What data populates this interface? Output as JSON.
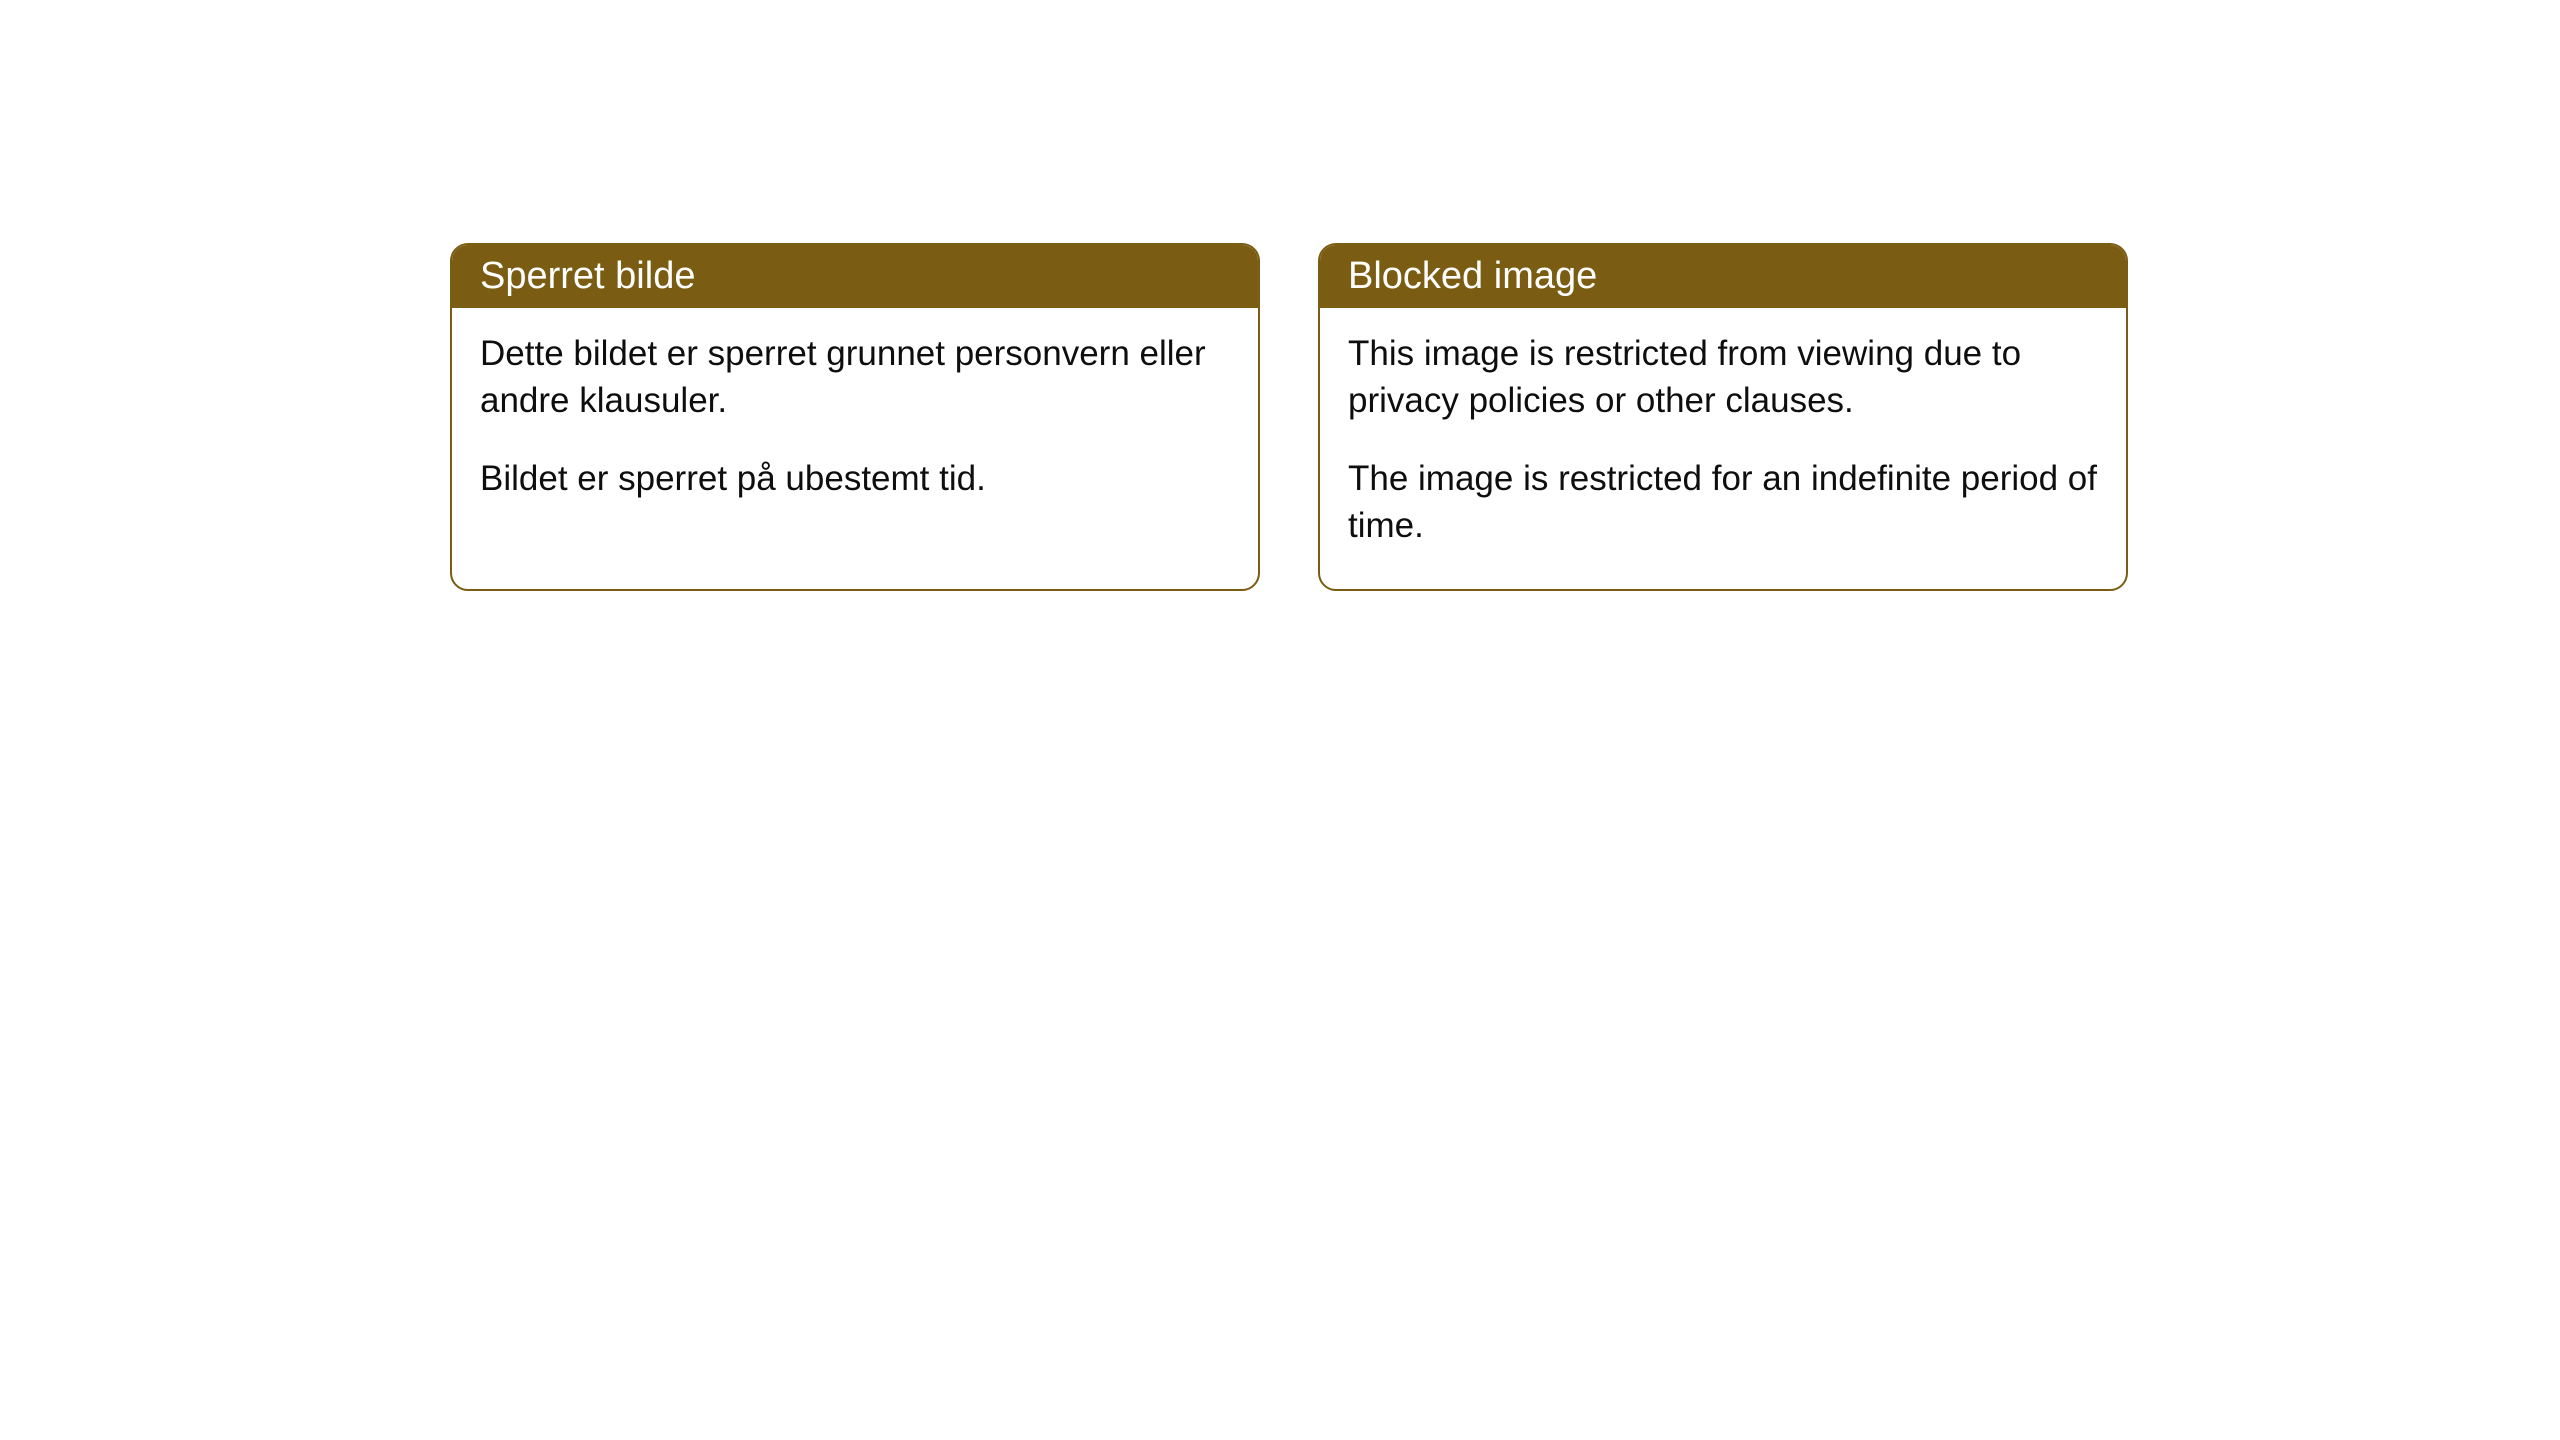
{
  "cards": [
    {
      "title": "Sperret bilde",
      "paragraph1": "Dette bildet er sperret grunnet personvern eller andre klausuler.",
      "paragraph2": "Bildet er sperret på ubestemt tid."
    },
    {
      "title": "Blocked image",
      "paragraph1": "This image is restricted from viewing due to privacy policies or other clauses.",
      "paragraph2": "The image is restricted for an indefinite period of time."
    }
  ],
  "style": {
    "header_background": "#7a5d12",
    "header_text_color": "#ffffff",
    "border_color": "#7a5d12",
    "body_text_color": "#0e0e0e",
    "card_background": "#ffffff",
    "border_radius": 18,
    "title_fontsize": 38,
    "body_fontsize": 35
  }
}
